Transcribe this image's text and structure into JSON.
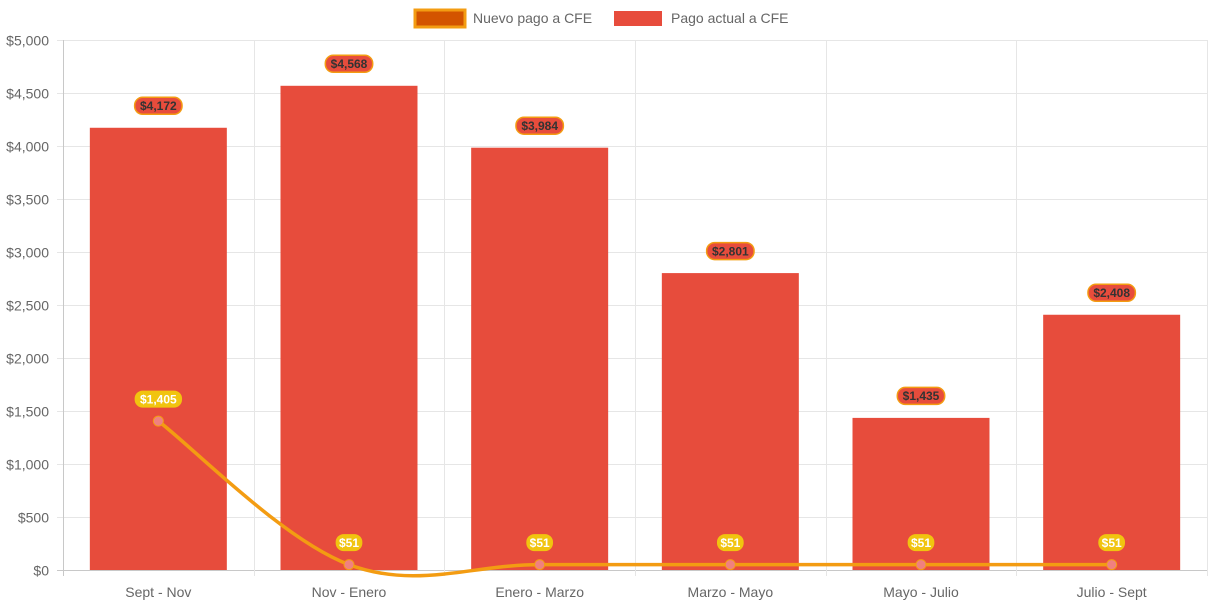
{
  "chart_data": {
    "type": "bar",
    "categories": [
      "Sept - Nov",
      "Nov - Enero",
      "Enero - Marzo",
      "Marzo - Mayo",
      "Mayo - Julio",
      "Julio - Sept"
    ],
    "series": [
      {
        "name": "Nuevo pago a CFE",
        "render": "line",
        "values": [
          1405,
          51,
          51,
          51,
          51,
          51
        ],
        "value_labels": [
          "$1,405",
          "$51",
          "$51",
          "$51",
          "$51",
          "$51"
        ],
        "color": "#f39c12",
        "point_color": "#f08080",
        "label_bg": "#f1c40f",
        "label_text_color": "#ffffff"
      },
      {
        "name": "Pago actual a CFE",
        "render": "bar",
        "values": [
          4172,
          4568,
          3984,
          2801,
          1435,
          2408
        ],
        "value_labels": [
          "$4,172",
          "$4,568",
          "$3,984",
          "$2,801",
          "$1,435",
          "$2,408"
        ],
        "color": "#e74c3c",
        "label_bg": "#e74c3c",
        "label_border": "#f39c12",
        "label_text_color": "#333333"
      }
    ],
    "y_ticks": [
      "$0",
      "$500",
      "$1,000",
      "$1,500",
      "$2,000",
      "$2,500",
      "$3,000",
      "$3,500",
      "$4,000",
      "$4,500",
      "$5,000"
    ],
    "ylim": [
      0,
      5000
    ],
    "y_tick_step": 500,
    "grid": true,
    "legend_position": "top",
    "title": "",
    "xlabel": "",
    "ylabel": ""
  },
  "legend": {
    "line_swatch_fill": "#d35400",
    "line_swatch_border": "#f39c12",
    "bar_swatch_fill": "#e74c3c"
  }
}
